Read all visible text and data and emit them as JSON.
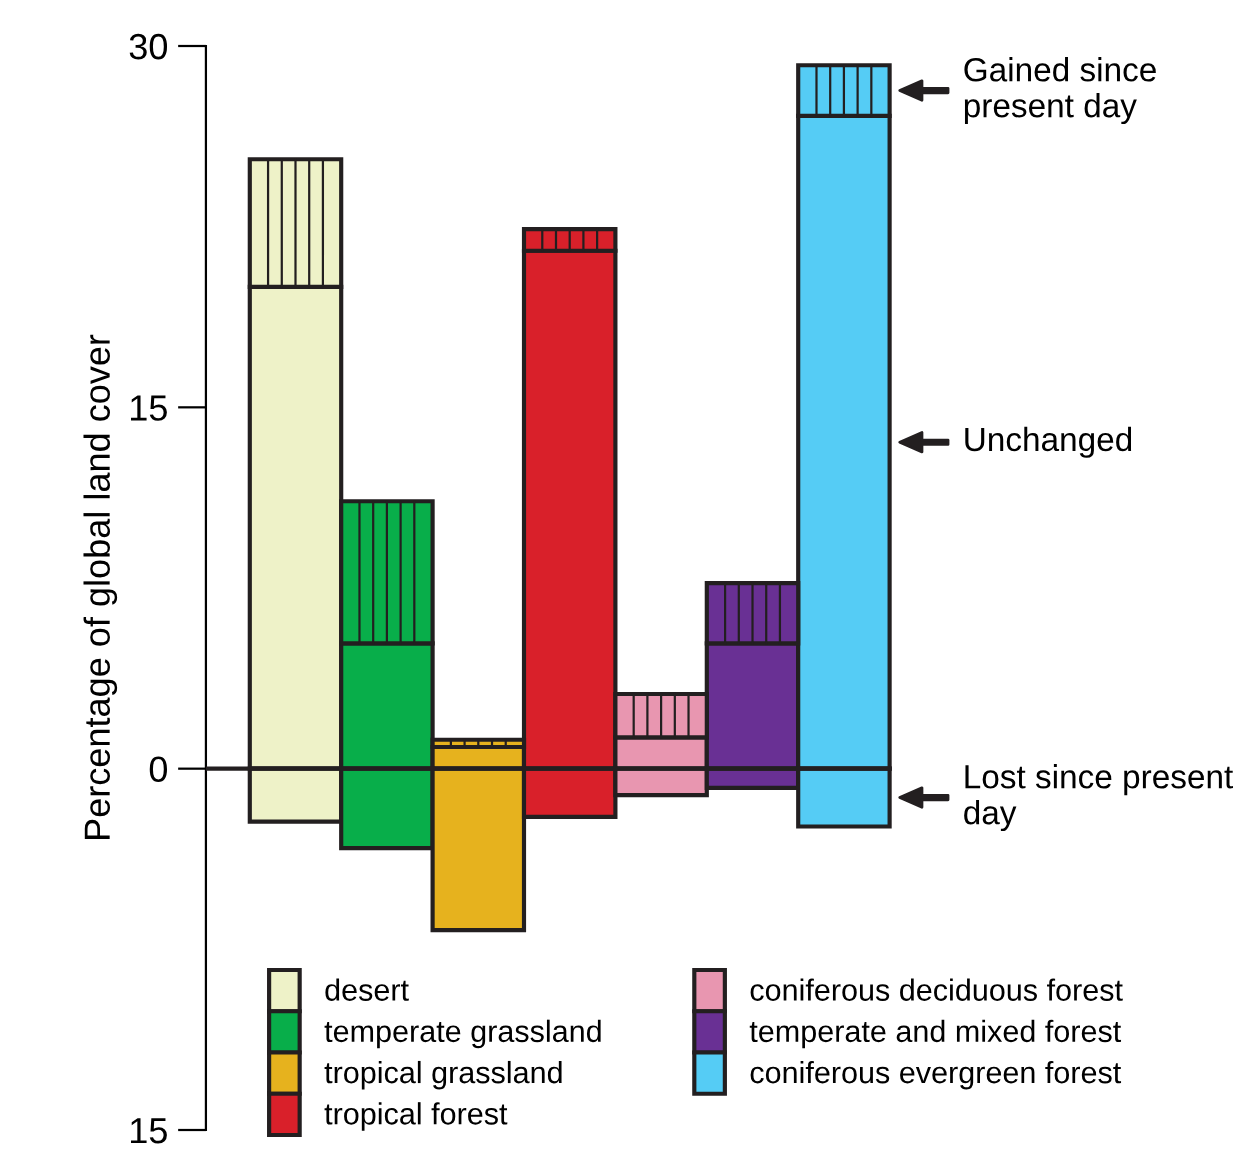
{
  "chart_data": {
    "type": "bar",
    "ylabel": "Percentage of global land cover",
    "categories": [
      null,
      null,
      null,
      null,
      null,
      null,
      null
    ],
    "stacked": true,
    "series": [
      {
        "name": "desert",
        "color": "#eef2c8",
        "values": [
          20.0,
          null,
          null,
          null,
          null,
          null,
          null
        ]
      },
      {
        "name": "temperate grassland",
        "color": "#08ae4a",
        "values": [
          null,
          5.2,
          null,
          null,
          null,
          null,
          null
        ]
      },
      {
        "name": "tropical grassland",
        "color": "#e6b21e",
        "values": [
          null,
          null,
          0.9,
          null,
          null,
          null,
          null
        ]
      },
      {
        "name": "tropical forest",
        "color": "#d9202a",
        "values": [
          null,
          null,
          null,
          21.5,
          null,
          null,
          null
        ]
      },
      {
        "name": "coniferous deciduous forest",
        "color": "#e896b0",
        "values": [
          null,
          null,
          null,
          null,
          1.3,
          null,
          null
        ]
      },
      {
        "name": "temperate and mixed forest",
        "color": "#693094",
        "values": [
          null,
          null,
          null,
          null,
          null,
          5.2,
          null
        ]
      },
      {
        "name": "coniferous evergreen forest",
        "color": "#55ccf5",
        "values": [
          null,
          null,
          null,
          null,
          null,
          null,
          27.1
        ]
      },
      {
        "color": "#eef2c8",
        "values": [
          5.3,
          null,
          null,
          null,
          null,
          null,
          null
        ]
      },
      {
        "color": "#08ae4a",
        "values": [
          null,
          5.9,
          null,
          null,
          null,
          null,
          null
        ]
      },
      {
        "color": "#e6b21e",
        "values": [
          null,
          null,
          0.3,
          null,
          null,
          null,
          null
        ]
      },
      {
        "color": "#d9202a",
        "values": [
          null,
          null,
          null,
          0.9,
          null,
          null,
          null
        ]
      },
      {
        "color": "#e896b0",
        "values": [
          null,
          null,
          null,
          null,
          1.8,
          null,
          null
        ]
      },
      {
        "color": "#693094",
        "values": [
          null,
          null,
          null,
          null,
          null,
          2.5,
          null
        ]
      },
      {
        "color": "#55ccf5",
        "values": [
          null,
          null,
          null,
          null,
          null,
          null,
          2.1
        ]
      },
      {
        "color": "#eef2c8",
        "values": [
          -2.2,
          null,
          null,
          null,
          null,
          null,
          null
        ]
      },
      {
        "color": "#08ae4a",
        "values": [
          null,
          -3.3,
          null,
          null,
          null,
          null,
          null
        ]
      },
      {
        "color": "#e6b21e",
        "values": [
          null,
          null,
          -6.7,
          null,
          null,
          null,
          null
        ]
      },
      {
        "color": "#d9202a",
        "values": [
          null,
          null,
          null,
          -2.0,
          null,
          null,
          null
        ]
      },
      {
        "color": "#e896b0",
        "values": [
          null,
          null,
          null,
          null,
          -1.1,
          null,
          null
        ]
      },
      {
        "color": "#693094",
        "values": [
          null,
          null,
          null,
          null,
          null,
          -0.8,
          null
        ]
      },
      {
        "color": "#55ccf5",
        "values": [
          null,
          null,
          null,
          null,
          null,
          null,
          -2.4
        ]
      }
    ],
    "annotations": [
      "Gained since present day",
      "Unchanged",
      "Lost since present day"
    ],
    "ylim": [
      -15,
      30
    ],
    "yticks": [
      30,
      15,
      0,
      {
        "value": -15,
        "label": "15"
      }
    ],
    "ref_lines": [
      {
        "axis": "y",
        "value": 0,
        "color": "#231f20"
      }
    ],
    "legend": "bottom",
    "grid": false
  }
}
